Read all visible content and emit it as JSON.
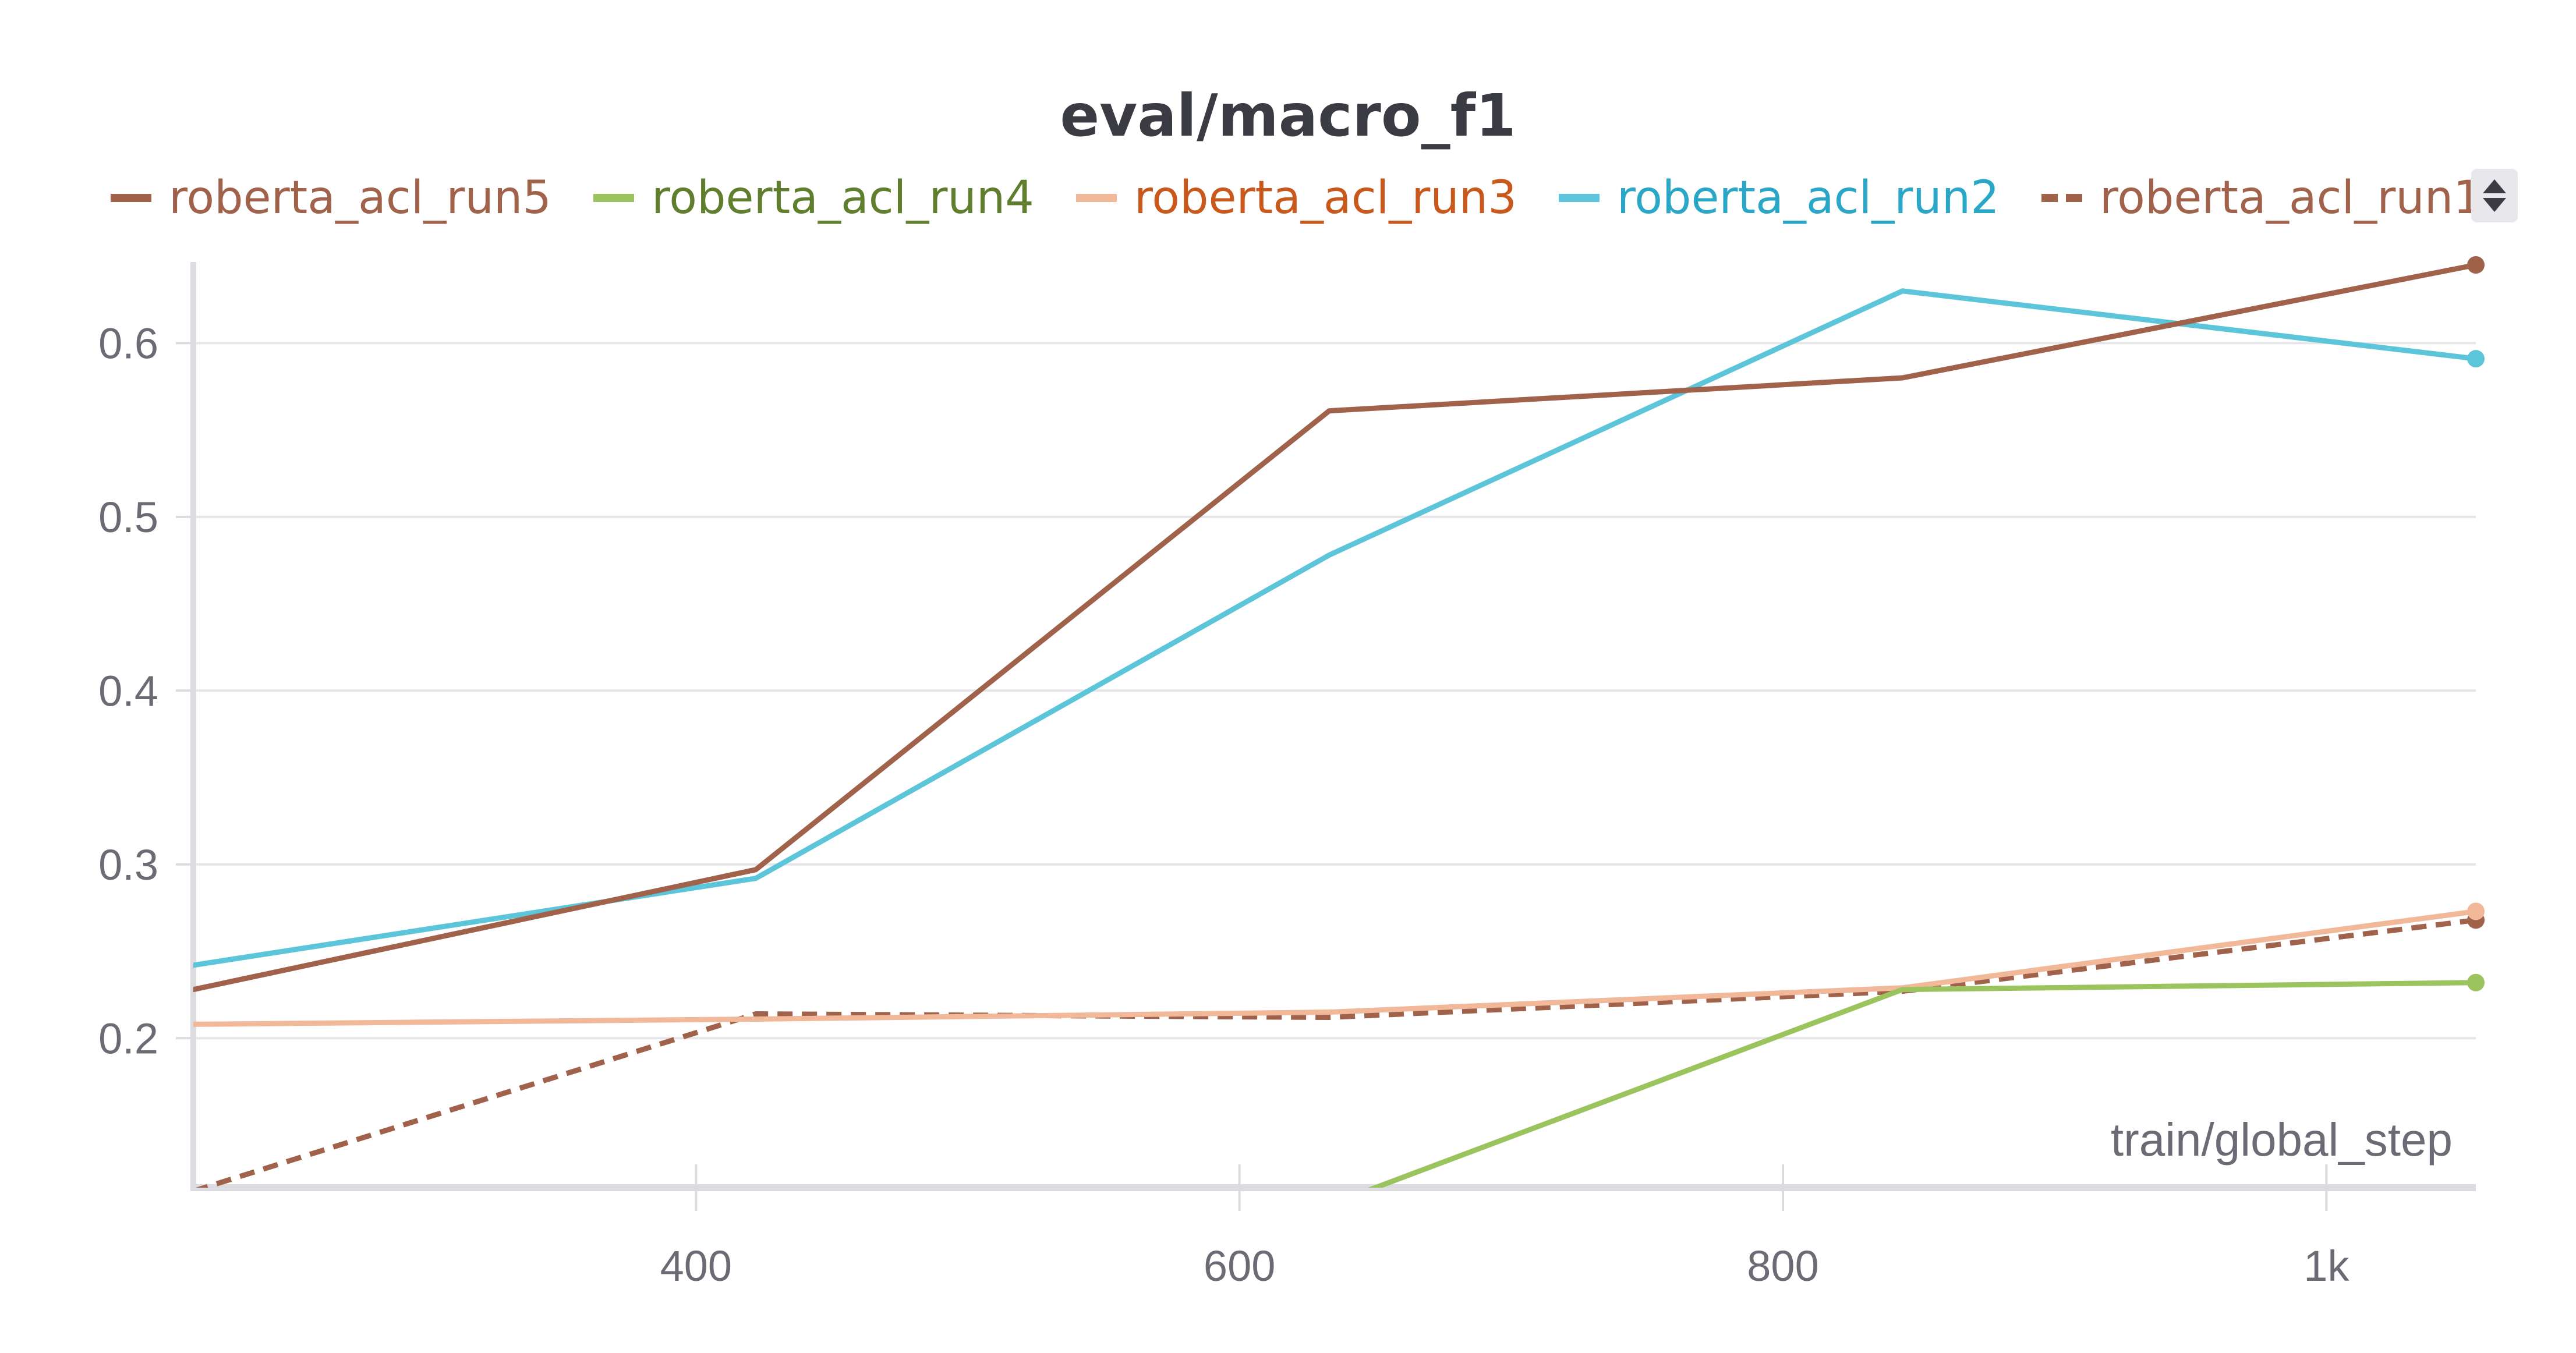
{
  "chart_data": {
    "type": "line",
    "title": "eval/macro_f1",
    "xlabel": "train/global_step",
    "ylabel": "",
    "xlim": [
      215,
      1055
    ],
    "ylim": [
      0.114,
      0.645
    ],
    "xticks": [
      400,
      600,
      800,
      1000
    ],
    "xtick_labels": [
      "400",
      "600",
      "800",
      "1k"
    ],
    "yticks": [
      0.2,
      0.3,
      0.4,
      0.5,
      0.6
    ],
    "ytick_labels": [
      "0.2",
      "0.3",
      "0.4",
      "0.5",
      "0.6"
    ],
    "grid": true,
    "legend_position": "top",
    "series": [
      {
        "name": "roberta_acl_run5",
        "color": "#a0624b",
        "label_color": "#a0624b",
        "dashed": false,
        "x": [
          215,
          422,
          633,
          844,
          1055
        ],
        "y": [
          0.228,
          0.297,
          0.561,
          0.58,
          0.645
        ]
      },
      {
        "name": "roberta_acl_run4",
        "color": "#9cc45e",
        "label_color": "#5f7f2e",
        "dashed": false,
        "x": [
          633,
          844,
          1055
        ],
        "y": [
          0.104,
          0.228,
          0.232
        ]
      },
      {
        "name": "roberta_acl_run3",
        "color": "#f2b89a",
        "label_color": "#c8581c",
        "dashed": false,
        "x": [
          215,
          422,
          633,
          844,
          1055
        ],
        "y": [
          0.208,
          0.211,
          0.215,
          0.229,
          0.273
        ]
      },
      {
        "name": "roberta_acl_run2",
        "color": "#5cc5d9",
        "label_color": "#2aa7c6",
        "dashed": false,
        "x": [
          215,
          422,
          633,
          844,
          1055
        ],
        "y": [
          0.242,
          0.292,
          0.478,
          0.63,
          0.591
        ]
      },
      {
        "name": "roberta_acl_run1",
        "color": "#a0624b",
        "label_color": "#a0624b",
        "dashed": true,
        "x": [
          215,
          422,
          633,
          844,
          1055
        ],
        "y": [
          0.112,
          0.214,
          0.212,
          0.227,
          0.268
        ]
      }
    ]
  }
}
